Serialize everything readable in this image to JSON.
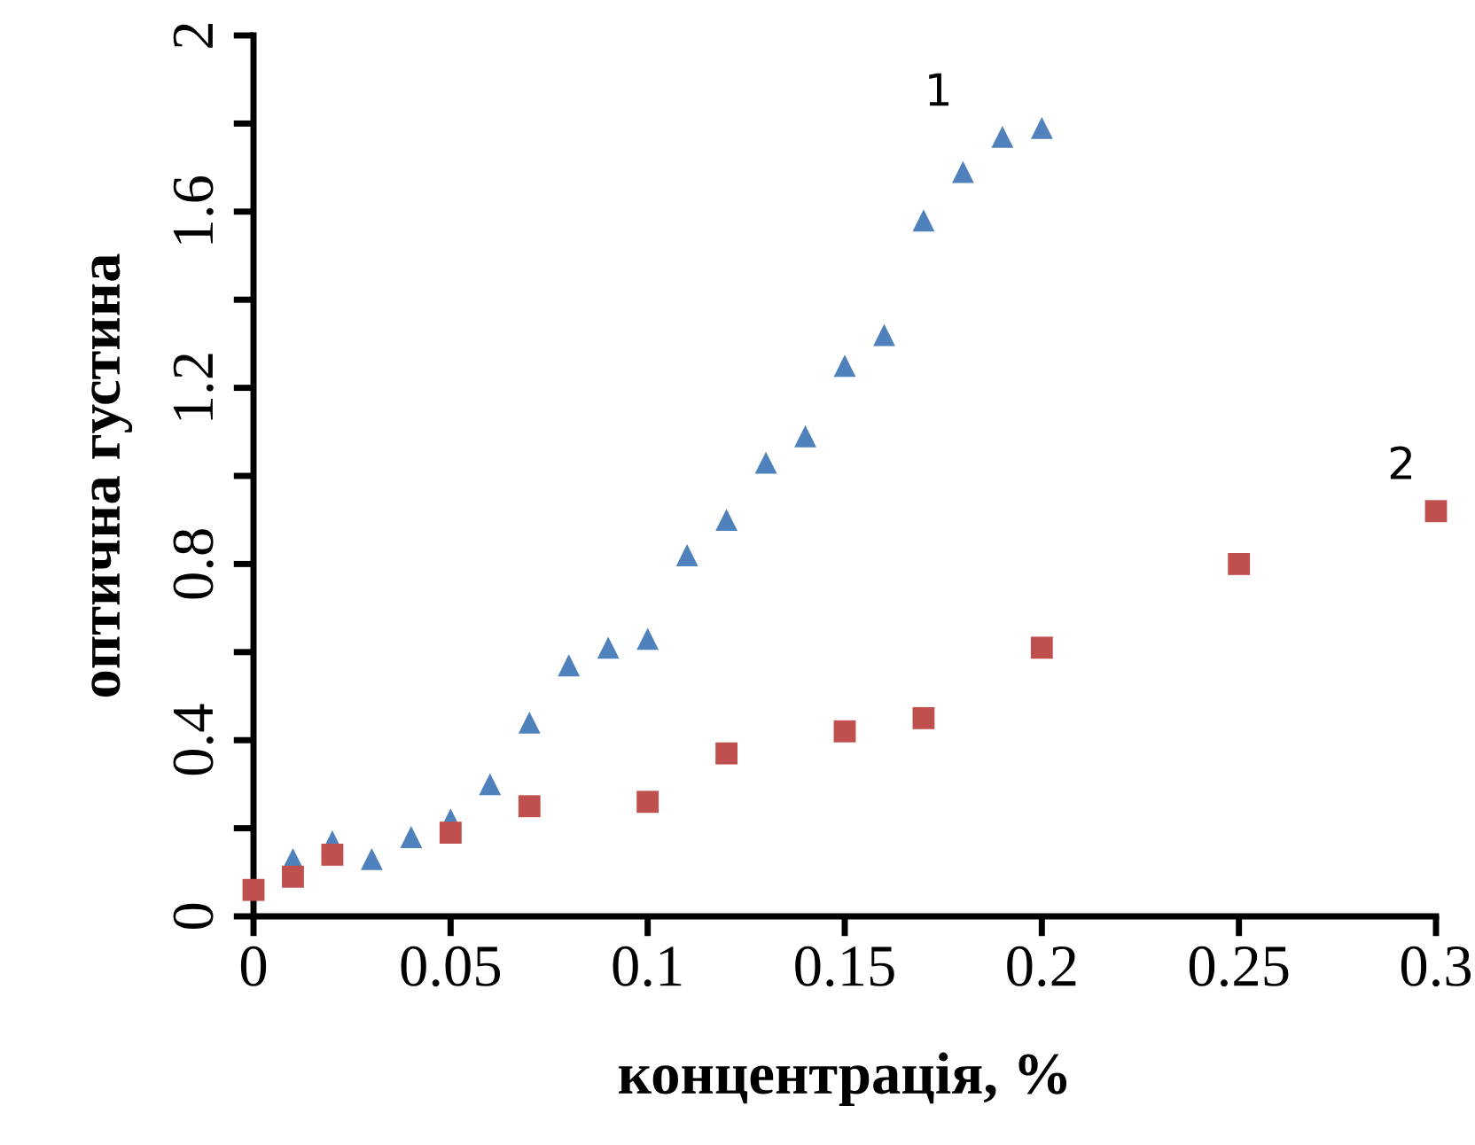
{
  "chart_data": {
    "type": "scatter",
    "xlabel": "концентрація, %",
    "ylabel": "оптична густина",
    "xlim": [
      0,
      0.3
    ],
    "xticks": [
      0,
      0.05,
      0.1,
      0.15,
      0.2,
      0.25,
      0.3
    ],
    "ylim": [
      0,
      2
    ],
    "yticks": [
      0,
      {
        "value": 0.2,
        "label": null
      },
      0.4,
      {
        "value": 0.6,
        "label": null
      },
      0.8,
      {
        "value": 1.0,
        "label": null
      },
      1.2,
      {
        "value": 1.4,
        "label": null
      },
      1.6,
      {
        "value": 1.8,
        "label": null
      },
      2
    ],
    "grid": false,
    "legend": false,
    "series": [
      {
        "name": "1",
        "color": "#4f81bd",
        "marker": "triangle",
        "x": [
          0.01,
          0.02,
          0.03,
          0.04,
          0.05,
          0.06,
          0.07,
          0.08,
          0.09,
          0.1,
          0.11,
          0.12,
          0.13,
          0.14,
          0.15,
          0.16,
          0.17,
          0.18,
          0.19,
          0.2
        ],
        "values": [
          0.13,
          0.17,
          0.13,
          0.18,
          0.22,
          0.3,
          0.44,
          0.57,
          0.61,
          0.63,
          0.82,
          0.9,
          1.03,
          1.09,
          1.25,
          1.32,
          1.58,
          1.69,
          1.77,
          1.79
        ]
      },
      {
        "name": "2",
        "color": "#c0504d",
        "marker": "square",
        "x": [
          0,
          0.01,
          0.02,
          0.05,
          0.07,
          0.1,
          0.12,
          0.15,
          0.17,
          0.2,
          0.25,
          0.3
        ],
        "values": [
          0.06,
          0.09,
          0.14,
          0.19,
          0.25,
          0.26,
          0.37,
          0.42,
          0.45,
          0.61,
          0.8,
          0.92
        ]
      }
    ]
  }
}
